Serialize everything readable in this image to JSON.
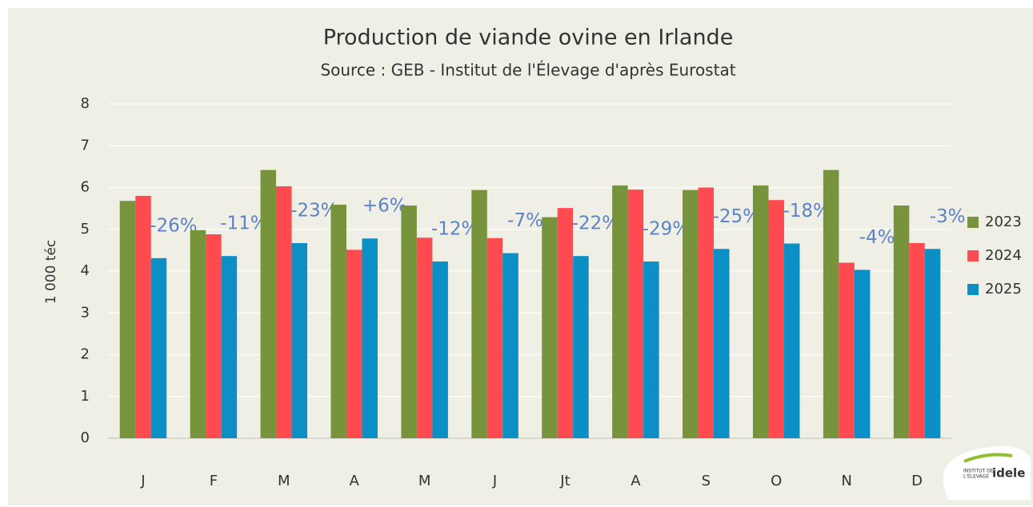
{
  "chart_data": {
    "type": "bar",
    "title": "Production de viande ovine en Irlande",
    "subtitle": "Source : GEB - Institut de l'Élevage d'après Eurostat",
    "y_label": "1 000 téc",
    "categories": [
      "J",
      "F",
      "M",
      "A",
      "M",
      "J",
      "Jt",
      "A",
      "S",
      "O",
      "N",
      "D"
    ],
    "series": [
      {
        "name": "2023",
        "color": "#77933c",
        "values": [
          5.68,
          4.98,
          6.42,
          5.59,
          5.57,
          5.94,
          5.29,
          6.05,
          5.94,
          6.05,
          6.42,
          5.57
        ]
      },
      {
        "name": "2024",
        "color": "#ff4a50",
        "values": [
          5.8,
          4.88,
          6.03,
          4.51,
          4.8,
          4.79,
          5.51,
          5.95,
          6.0,
          5.7,
          4.2,
          4.67
        ]
      },
      {
        "name": "2025",
        "color": "#0b8fc4",
        "values": [
          4.31,
          4.36,
          4.67,
          4.78,
          4.23,
          4.43,
          4.36,
          4.23,
          4.53,
          4.66,
          4.03,
          4.53
        ]
      }
    ],
    "annotations": [
      "-26%",
      "-11%",
      "-23%",
      "+6%",
      "-12%",
      "-7%",
      "-22%",
      "-29%",
      "-25%",
      "-18%",
      "-4%",
      "-3%"
    ],
    "ylim": [
      0,
      8
    ],
    "yticks": [
      0,
      1,
      2,
      3,
      4,
      5,
      6,
      7,
      8
    ],
    "grid": true,
    "legend": "right",
    "logo": {
      "line1": "INSTITUT DE",
      "line2": "L'ÉLEVAGE",
      "name": "idele"
    }
  }
}
